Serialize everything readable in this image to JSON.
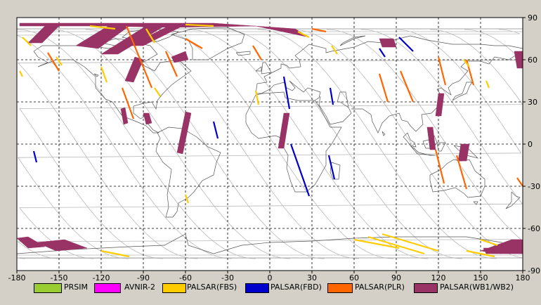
{
  "chart_data": {
    "type": "map",
    "x_ticks": [
      "-180",
      "-150",
      "-120",
      "-90",
      "-60",
      "-30",
      "0",
      "30",
      "60",
      "90",
      "120",
      "150",
      "180"
    ],
    "y_ticks": [
      "90",
      "60",
      "30",
      "0",
      "-30",
      "-60",
      "-90"
    ],
    "xlim": [
      -180,
      180
    ],
    "ylim": [
      -90,
      90
    ],
    "grid": true,
    "legend_position": "bottom",
    "legend": [
      {
        "label": "PRSIM",
        "color": "#9acd32"
      },
      {
        "label": "AVNIR-2",
        "color": "#ff00ff"
      },
      {
        "label": "PALSAR(FBS)",
        "color": "#ffcc00"
      },
      {
        "label": "PALSAR(FBD)",
        "color": "#0000cc"
      },
      {
        "label": "PALSAR(PLR)",
        "color": "#ff6600"
      },
      {
        "label": "PALSAR(WB1/WB2)",
        "color": "#993366"
      }
    ],
    "swaths": [
      {
        "mode": "PALSAR(WB1/WB2)",
        "path": [
          [
            -178,
            84
          ],
          [
            -120,
            84
          ],
          [
            -70,
            83
          ],
          [
            -10,
            84
          ],
          [
            28,
            76
          ],
          [
            18,
            82
          ],
          [
            -40,
            86
          ],
          [
            -100,
            86
          ],
          [
            -178,
            86
          ]
        ],
        "fill": true
      },
      {
        "mode": "PALSAR(WB1/WB2)",
        "path": [
          [
            -172,
            72
          ],
          [
            -160,
            84
          ],
          [
            -150,
            84
          ],
          [
            -162,
            72
          ]
        ],
        "fill": true
      },
      {
        "mode": "PALSAR(WB1/WB2)",
        "path": [
          [
            -138,
            70
          ],
          [
            -115,
            84
          ],
          [
            -100,
            84
          ],
          [
            -122,
            68
          ]
        ],
        "fill": true
      },
      {
        "mode": "PALSAR(WB1/WB2)",
        "path": [
          [
            -120,
            64
          ],
          [
            -88,
            84
          ],
          [
            -75,
            84
          ],
          [
            -108,
            64
          ]
        ],
        "fill": true
      },
      {
        "mode": "PALSAR(WB1/WB2)",
        "path": [
          [
            -100,
            70
          ],
          [
            -72,
            84
          ],
          [
            -62,
            84
          ],
          [
            -90,
            70
          ]
        ],
        "fill": true
      },
      {
        "mode": "PALSAR(WB1/WB2)",
        "path": [
          [
            -103,
            45
          ],
          [
            -96,
            62
          ],
          [
            -90,
            60
          ],
          [
            -97,
            44
          ]
        ],
        "fill": true
      },
      {
        "mode": "PALSAR(WB1/WB2)",
        "path": [
          [
            -70,
            62
          ],
          [
            -60,
            66
          ],
          [
            -58,
            60
          ],
          [
            -68,
            58
          ]
        ],
        "fill": true
      },
      {
        "mode": "PALSAR(WB1/WB2)",
        "path": [
          [
            -106,
            25
          ],
          [
            -103,
            26
          ],
          [
            -101,
            15
          ],
          [
            -104,
            14
          ]
        ],
        "fill": true
      },
      {
        "mode": "PALSAR(WB1/WB2)",
        "path": [
          [
            -90,
            22
          ],
          [
            -86,
            22
          ],
          [
            -84,
            15
          ],
          [
            -88,
            14
          ]
        ],
        "fill": true
      },
      {
        "mode": "PALSAR(WB1/WB2)",
        "path": [
          [
            -60,
            23
          ],
          [
            -56,
            22
          ],
          [
            -62,
            -7
          ],
          [
            -66,
            -6
          ]
        ],
        "fill": true
      },
      {
        "mode": "PALSAR(WB1/WB2)",
        "path": [
          [
            10,
            22
          ],
          [
            14,
            22
          ],
          [
            10,
            -3
          ],
          [
            6,
            -3
          ]
        ],
        "fill": true
      },
      {
        "mode": "PALSAR(WB1/WB2)",
        "path": [
          [
            78,
            75
          ],
          [
            88,
            75
          ],
          [
            90,
            69
          ],
          [
            80,
            69
          ]
        ],
        "fill": true
      },
      {
        "mode": "PALSAR(WB1/WB2)",
        "path": [
          [
            120,
            36
          ],
          [
            124,
            36
          ],
          [
            122,
            20
          ],
          [
            118,
            20
          ]
        ],
        "fill": true
      },
      {
        "mode": "PALSAR(WB1/WB2)",
        "path": [
          [
            112,
            12
          ],
          [
            116,
            12
          ],
          [
            118,
            -4
          ],
          [
            114,
            -4
          ]
        ],
        "fill": true
      },
      {
        "mode": "PALSAR(WB1/WB2)",
        "path": [
          [
            136,
            0
          ],
          [
            142,
            0
          ],
          [
            140,
            -12
          ],
          [
            134,
            -12
          ]
        ],
        "fill": true
      },
      {
        "mode": "PALSAR(WB1/WB2)",
        "path": [
          [
            174,
            66
          ],
          [
            180,
            66
          ],
          [
            180,
            54
          ],
          [
            176,
            54
          ]
        ],
        "fill": true
      },
      {
        "mode": "PALSAR(WB1/WB2)",
        "path": [
          [
            -180,
            -67
          ],
          [
            -172,
            -66
          ],
          [
            -160,
            -73
          ],
          [
            -172,
            -74
          ]
        ],
        "fill": true
      },
      {
        "mode": "PALSAR(WB1/WB2)",
        "path": [
          [
            -166,
            -70
          ],
          [
            -146,
            -68
          ],
          [
            -130,
            -74
          ],
          [
            -152,
            -76
          ]
        ],
        "fill": true
      },
      {
        "mode": "PALSAR(WB1/WB2)",
        "path": [
          [
            150,
            -76
          ],
          [
            172,
            -68
          ],
          [
            180,
            -68
          ],
          [
            180,
            -75
          ],
          [
            164,
            -78
          ]
        ],
        "fill": true
      },
      {
        "mode": "PALSAR(WB1/WB2)",
        "path": [
          [
            152,
            -74
          ],
          [
            180,
            -74
          ],
          [
            180,
            -78
          ],
          [
            154,
            -78
          ]
        ],
        "fill": true
      },
      {
        "mode": "PALSAR(FBD)",
        "path": [
          [
            15,
            0
          ],
          [
            28,
            -37
          ]
        ]
      },
      {
        "mode": "PALSAR(FBD)",
        "path": [
          [
            10,
            48
          ],
          [
            14,
            25
          ]
        ]
      },
      {
        "mode": "PALSAR(FBD)",
        "path": [
          [
            -40,
            16
          ],
          [
            -37,
            4
          ]
        ]
      },
      {
        "mode": "PALSAR(FBD)",
        "path": [
          [
            78,
            68
          ],
          [
            82,
            62
          ]
        ]
      },
      {
        "mode": "PALSAR(FBD)",
        "path": [
          [
            92,
            76
          ],
          [
            102,
            66
          ]
        ]
      },
      {
        "mode": "PALSAR(FBD)",
        "path": [
          [
            43,
            40
          ],
          [
            45,
            28
          ]
        ]
      },
      {
        "mode": "PALSAR(FBD)",
        "path": [
          [
            42,
            -8
          ],
          [
            46,
            -25
          ]
        ]
      },
      {
        "mode": "PALSAR(FBD)",
        "path": [
          [
            -168,
            -5
          ],
          [
            -166,
            -13
          ]
        ]
      },
      {
        "mode": "PALSAR(PLR)",
        "path": [
          [
            -102,
            84
          ],
          [
            -84,
            40
          ]
        ]
      },
      {
        "mode": "PALSAR(PLR)",
        "path": [
          [
            -74,
            66
          ],
          [
            -66,
            48
          ]
        ]
      },
      {
        "mode": "PALSAR(PLR)",
        "path": [
          [
            -105,
            40
          ],
          [
            -97,
            18
          ]
        ]
      },
      {
        "mode": "PALSAR(PLR)",
        "path": [
          [
            93,
            52
          ],
          [
            102,
            30
          ]
        ]
      },
      {
        "mode": "PALSAR(PLR)",
        "path": [
          [
            78,
            50
          ],
          [
            84,
            30
          ]
        ]
      },
      {
        "mode": "PALSAR(PLR)",
        "path": [
          [
            120,
            62
          ],
          [
            125,
            42
          ]
        ]
      },
      {
        "mode": "PALSAR(PLR)",
        "path": [
          [
            140,
            60
          ],
          [
            145,
            42
          ]
        ]
      },
      {
        "mode": "PALSAR(PLR)",
        "path": [
          [
            133,
            -8
          ],
          [
            140,
            -32
          ]
        ]
      },
      {
        "mode": "PALSAR(PLR)",
        "path": [
          [
            118,
            -4
          ],
          [
            124,
            -28
          ]
        ]
      },
      {
        "mode": "PALSAR(PLR)",
        "path": [
          [
            176,
            -24
          ],
          [
            180,
            -30
          ]
        ]
      },
      {
        "mode": "PALSAR(PLR)",
        "path": [
          [
            -12,
            70
          ],
          [
            -6,
            60
          ]
        ]
      },
      {
        "mode": "PALSAR(PLR)",
        "path": [
          [
            -158,
            65
          ],
          [
            -150,
            52
          ]
        ]
      },
      {
        "mode": "PALSAR(PLR)",
        "path": [
          [
            -60,
            75
          ],
          [
            -48,
            68
          ]
        ]
      },
      {
        "mode": "PALSAR(PLR)",
        "path": [
          [
            30,
            82
          ],
          [
            40,
            80
          ]
        ]
      },
      {
        "mode": "PALSAR(FBS)",
        "path": [
          [
            -176,
            76
          ],
          [
            -170,
            70
          ]
        ]
      },
      {
        "mode": "PALSAR(FBS)",
        "path": [
          [
            -152,
            62
          ],
          [
            -148,
            56
          ]
        ]
      },
      {
        "mode": "PALSAR(FBS)",
        "path": [
          [
            -120,
            55
          ],
          [
            -116,
            44
          ]
        ]
      },
      {
        "mode": "PALSAR(FBS)",
        "path": [
          [
            -88,
            82
          ],
          [
            -82,
            72
          ]
        ]
      },
      {
        "mode": "PALSAR(FBS)",
        "path": [
          [
            -82,
            40
          ],
          [
            -78,
            34
          ]
        ]
      },
      {
        "mode": "PALSAR(FBS)",
        "path": [
          [
            -10,
            38
          ],
          [
            -8,
            28
          ]
        ]
      },
      {
        "mode": "PALSAR(FBS)",
        "path": [
          [
            20,
            80
          ],
          [
            28,
            76
          ]
        ]
      },
      {
        "mode": "PALSAR(FBS)",
        "path": [
          [
            44,
            70
          ],
          [
            48,
            64
          ]
        ]
      },
      {
        "mode": "PALSAR(FBS)",
        "path": [
          [
            138,
            60
          ],
          [
            142,
            55
          ]
        ]
      },
      {
        "mode": "PALSAR(FBS)",
        "path": [
          [
            154,
            45
          ],
          [
            156,
            40
          ]
        ]
      },
      {
        "mode": "PALSAR(FBS)",
        "path": [
          [
            -60,
            -36
          ],
          [
            -58,
            -42
          ]
        ]
      },
      {
        "mode": "PALSAR(FBS)",
        "path": [
          [
            -178,
            52
          ],
          [
            -176,
            48
          ]
        ]
      },
      {
        "mode": "PALSAR(FBS)",
        "path": [
          [
            70,
            -66
          ],
          [
            110,
            -78
          ]
        ]
      },
      {
        "mode": "PALSAR(FBS)",
        "path": [
          [
            80,
            -64
          ],
          [
            120,
            -76
          ]
        ]
      },
      {
        "mode": "PALSAR(FBS)",
        "path": [
          [
            60,
            -68
          ],
          [
            92,
            -74
          ]
        ]
      },
      {
        "mode": "PALSAR(FBS)",
        "path": [
          [
            150,
            -68
          ],
          [
            162,
            -72
          ]
        ]
      },
      {
        "mode": "PALSAR(FBS)",
        "path": [
          [
            140,
            -76
          ],
          [
            160,
            -80
          ]
        ]
      },
      {
        "mode": "PALSAR(FBS)",
        "path": [
          [
            -120,
            -76
          ],
          [
            -100,
            -80
          ]
        ]
      },
      {
        "mode": "PALSAR(FBS)",
        "path": [
          [
            -128,
            84
          ],
          [
            -110,
            82
          ]
        ]
      },
      {
        "mode": "PALSAR(FBS)",
        "path": [
          [
            -60,
            85
          ],
          [
            -40,
            84
          ]
        ]
      }
    ]
  }
}
